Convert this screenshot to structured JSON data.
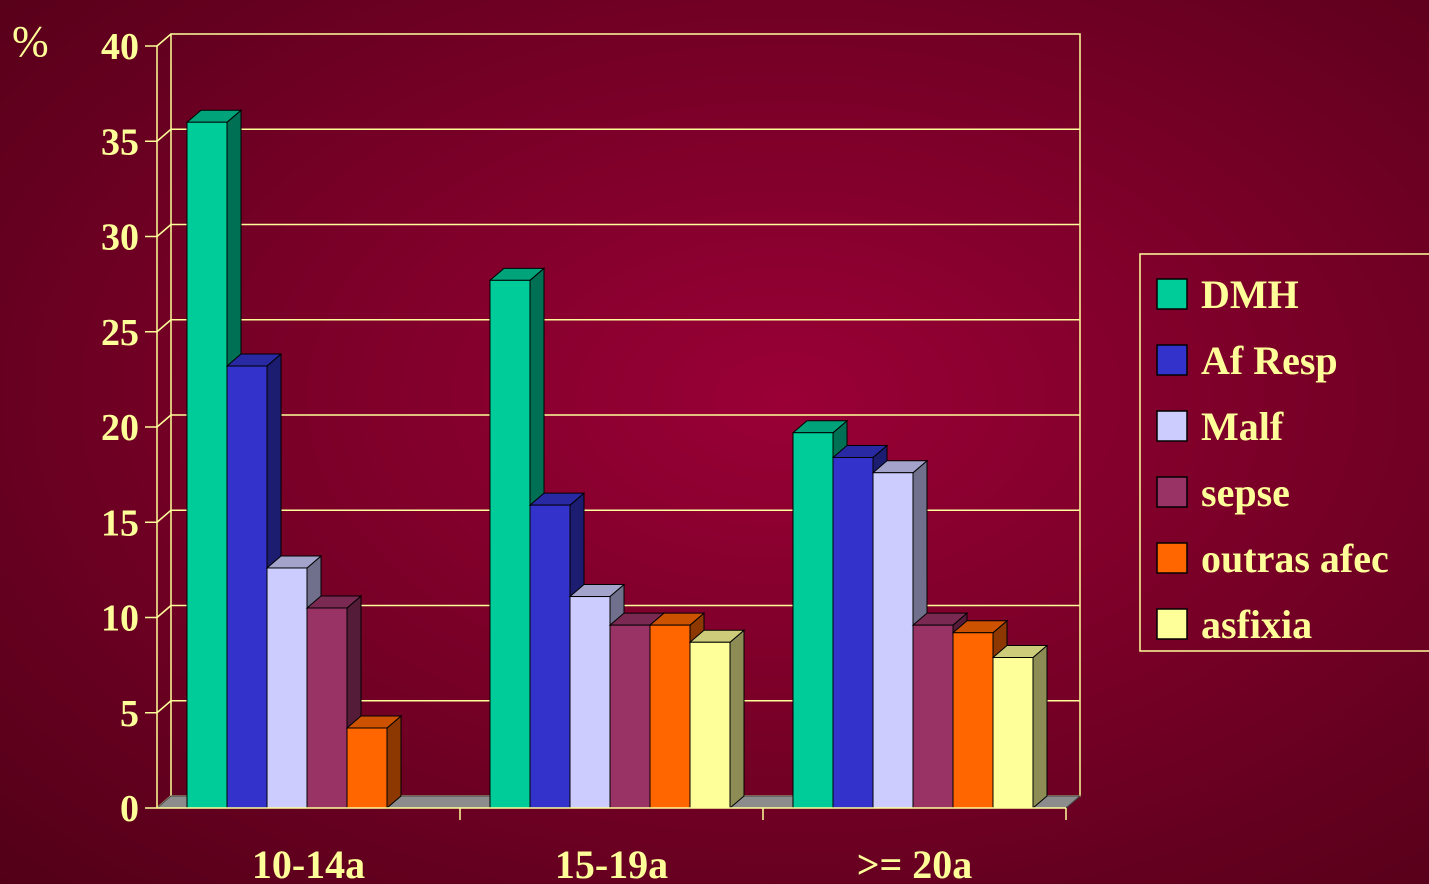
{
  "chart_data": {
    "type": "bar",
    "ylabel": "%",
    "ylim": [
      0,
      40
    ],
    "yticks": [
      0,
      5,
      10,
      15,
      20,
      25,
      30,
      35,
      40
    ],
    "grid": true,
    "legend_position": "right",
    "categories": [
      "10-14a",
      "15-19a",
      ">= 20a"
    ],
    "series": [
      {
        "name": "DMH",
        "color": "#00cc99",
        "values": [
          36,
          27.7,
          19.7
        ]
      },
      {
        "name": "Af Resp",
        "color": "#3333cc",
        "values": [
          23.2,
          15.9,
          18.4
        ]
      },
      {
        "name": "Malf",
        "color": "#ccccff",
        "values": [
          12.6,
          11.1,
          17.6
        ]
      },
      {
        "name": "sepse",
        "color": "#993366",
        "values": [
          10.5,
          9.6,
          9.6
        ]
      },
      {
        "name": "outras afec",
        "color": "#ff6600",
        "values": [
          4.2,
          9.6,
          9.2
        ]
      },
      {
        "name": "asfixia",
        "color": "#ffff99",
        "values": [
          0,
          8.7,
          7.9
        ]
      }
    ]
  }
}
